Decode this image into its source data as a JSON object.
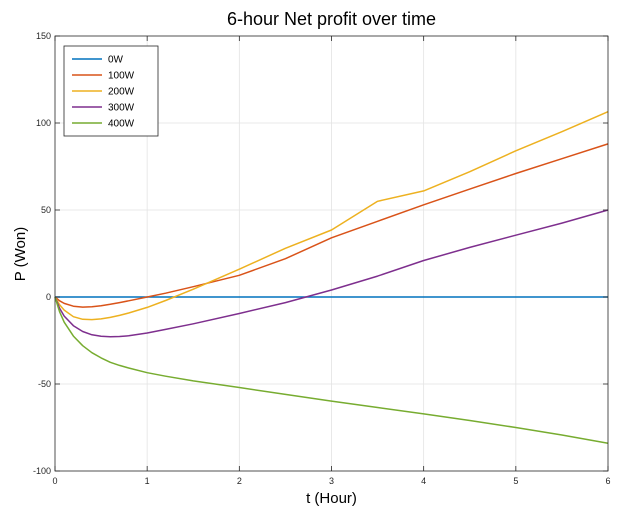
{
  "chart_data": {
    "type": "line",
    "title": "6-hour Net profit over time",
    "xlabel": "t (Hour)",
    "ylabel": "P (Won)",
    "xlim": [
      0,
      6
    ],
    "ylim": [
      -100,
      150
    ],
    "xticks": [
      0,
      1,
      2,
      3,
      4,
      5,
      6
    ],
    "yticks": [
      -100,
      -50,
      0,
      50,
      100,
      150
    ],
    "xtick_labels": [
      "0",
      "1",
      "2",
      "3",
      "4",
      "5",
      "6"
    ],
    "ytick_labels": [
      "-100",
      "-50",
      "0",
      "50",
      "100",
      "150"
    ],
    "grid": true,
    "legend_position": "top-left",
    "x": [
      0,
      0.05,
      0.1,
      0.2,
      0.3,
      0.4,
      0.5,
      0.6,
      0.7,
      0.8,
      1,
      1.2,
      1.5,
      2,
      2.5,
      3,
      3.5,
      4,
      4.5,
      5,
      5.5,
      6
    ],
    "series": [
      {
        "name": "0W",
        "color": "#0072BD",
        "values": [
          0,
          0,
          0,
          0,
          0,
          0,
          0,
          0,
          0,
          0,
          0,
          0,
          0,
          0,
          0,
          0,
          0,
          0,
          0,
          0,
          0,
          0
        ]
      },
      {
        "name": "100W",
        "color": "#D95319",
        "values": [
          0,
          -2.2,
          -3.7,
          -5.3,
          -5.8,
          -5.6,
          -5.0,
          -4.2,
          -3.2,
          -2.2,
          0,
          2.2,
          5.9,
          12.5,
          22,
          34,
          43.5,
          53,
          62,
          71,
          79.5,
          88
        ]
      },
      {
        "name": "200W",
        "color": "#EDB120",
        "values": [
          0,
          -4.5,
          -7.5,
          -11.3,
          -12.8,
          -13.0,
          -12.6,
          -11.7,
          -10.6,
          -9.2,
          -6.0,
          -2.0,
          4.5,
          16,
          28,
          38.5,
          55,
          61,
          72,
          84,
          95,
          106.5
        ]
      },
      {
        "name": "300W",
        "color": "#7E2F8E",
        "values": [
          0,
          -6.5,
          -11,
          -16.5,
          -19.8,
          -21.7,
          -22.6,
          -22.9,
          -22.7,
          -22.3,
          -20.7,
          -18.6,
          -15.4,
          -9.5,
          -3.2,
          4.0,
          12,
          21,
          28.5,
          35.5,
          42.5,
          50
        ]
      },
      {
        "name": "400W",
        "color": "#77AC30",
        "values": [
          0,
          -8.5,
          -14.5,
          -22.5,
          -28,
          -32,
          -35,
          -37.5,
          -39.3,
          -40.8,
          -43.5,
          -45.5,
          -48.2,
          -52,
          -56,
          -59.8,
          -63.5,
          -67.2,
          -71,
          -75,
          -79.3,
          -84
        ]
      }
    ]
  }
}
